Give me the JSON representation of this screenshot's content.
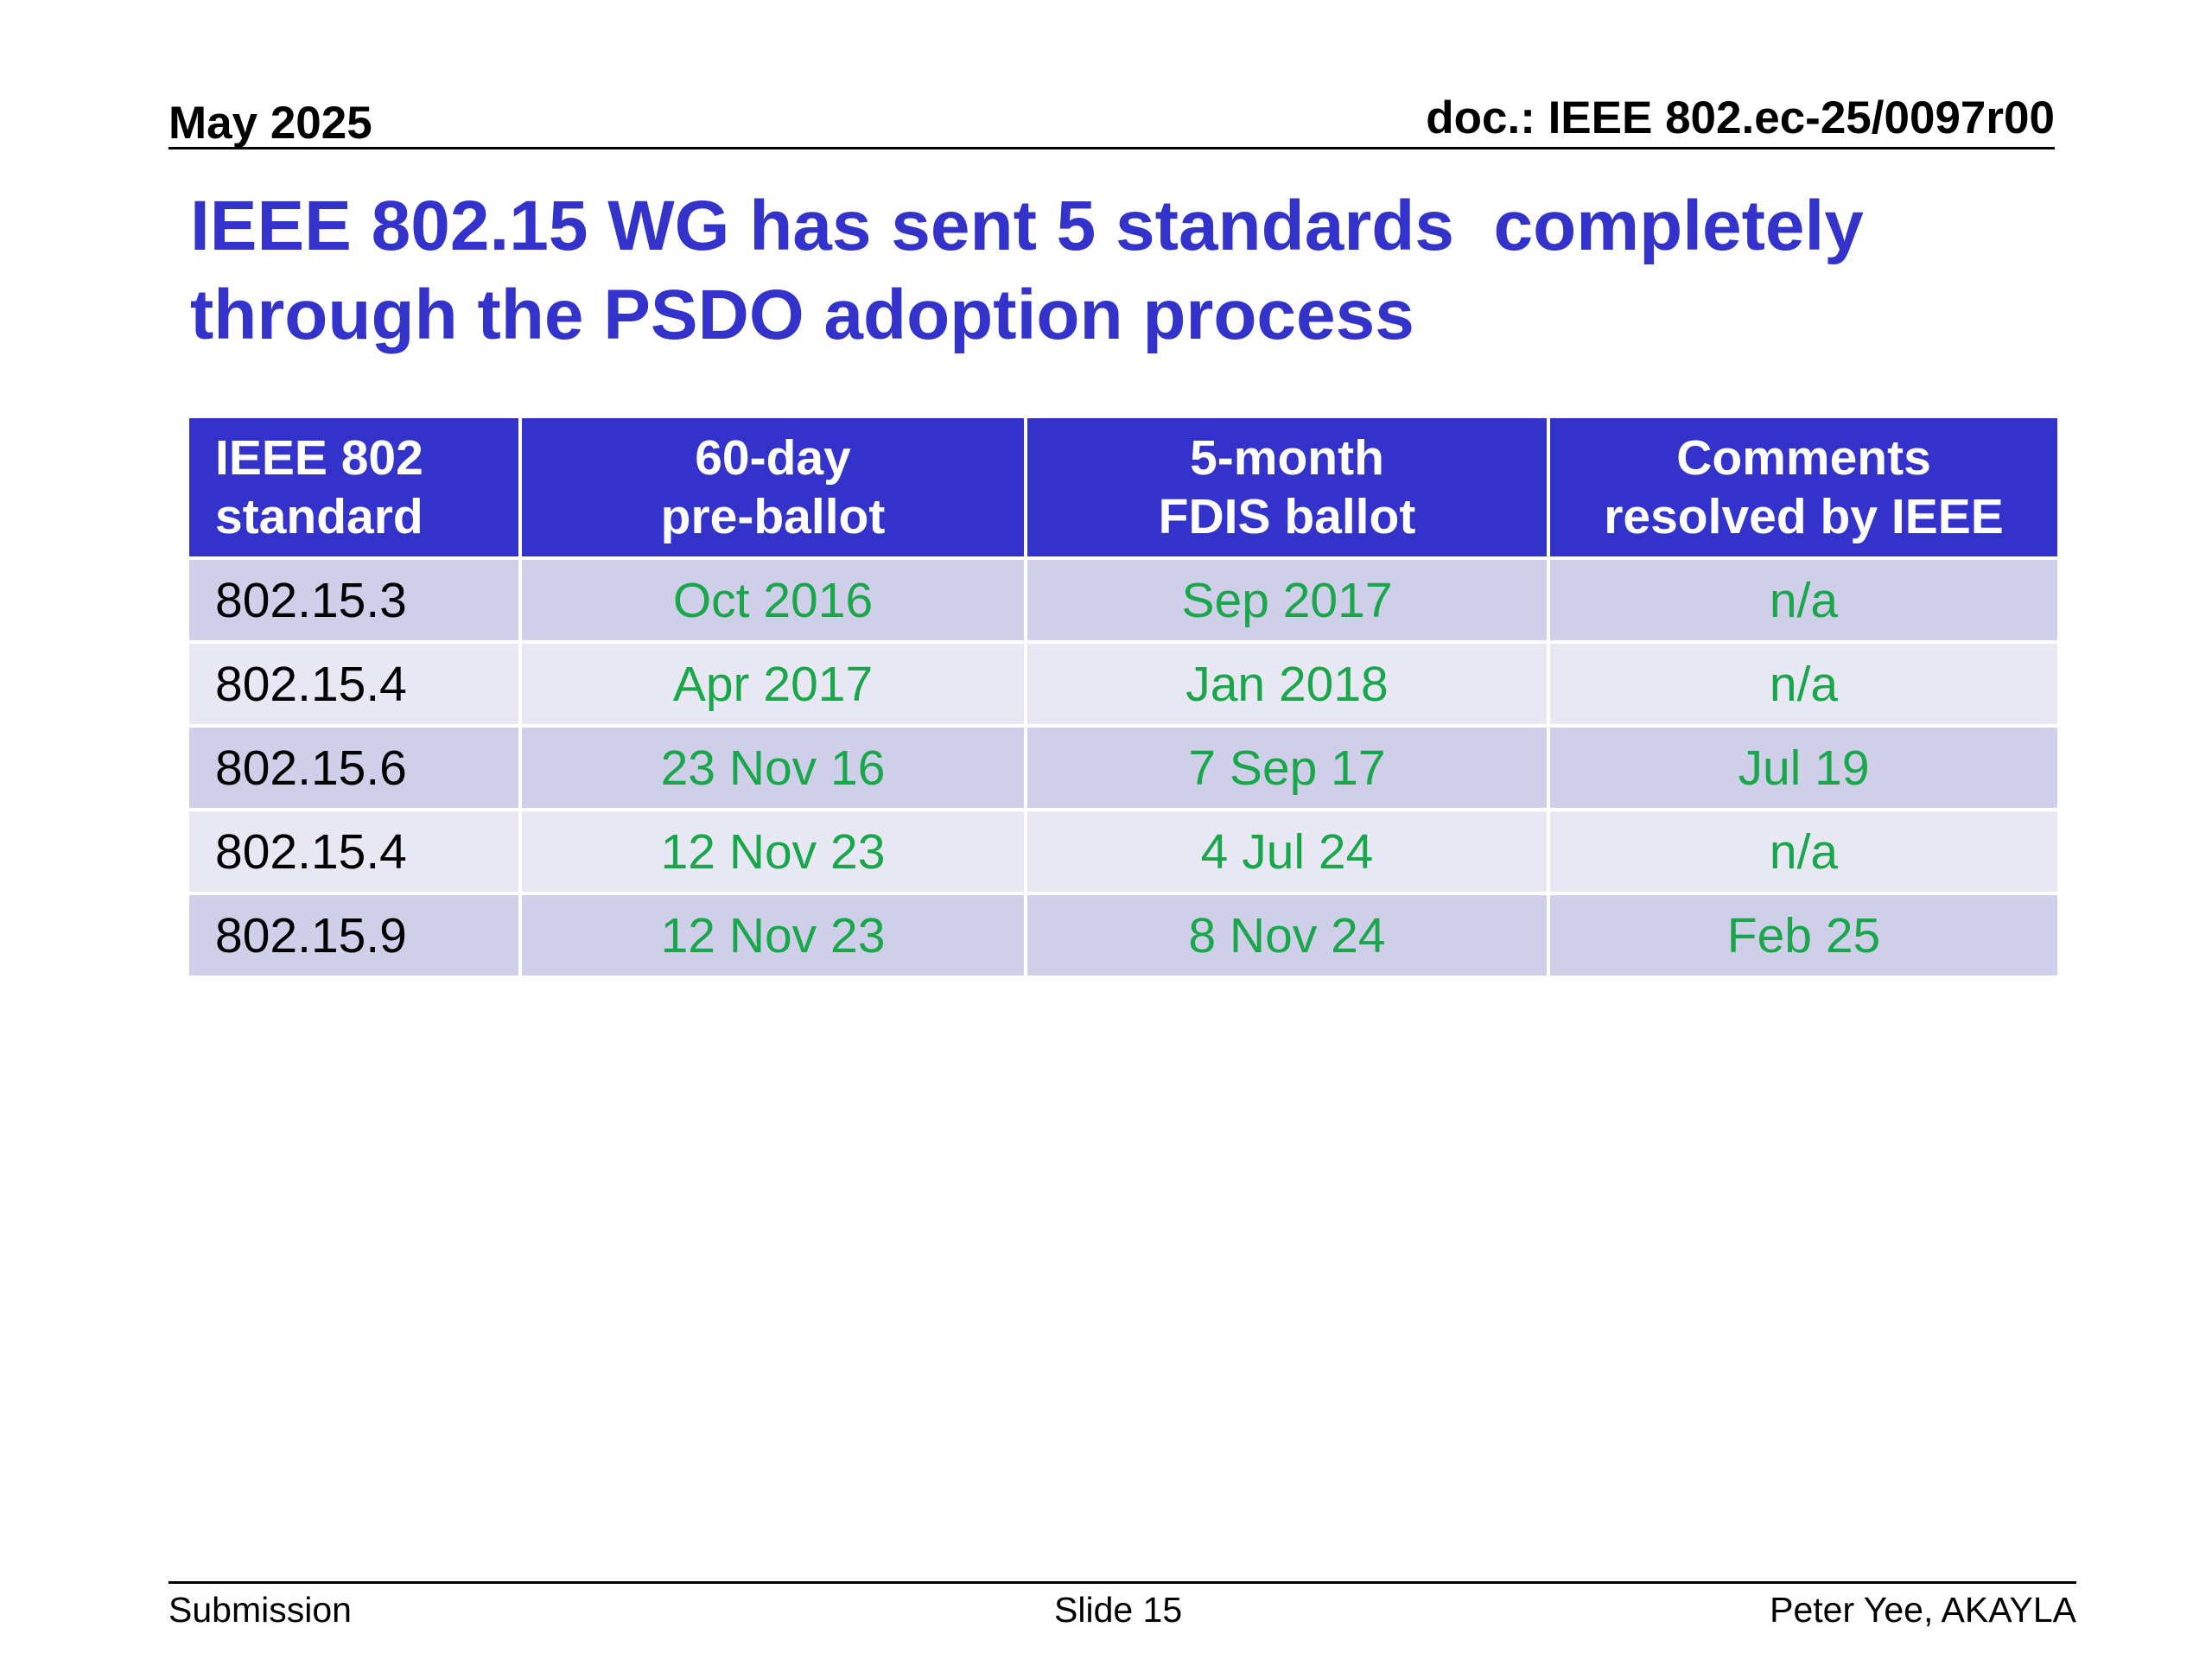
{
  "header": {
    "date": "May 2025",
    "doc": "doc.: IEEE 802.ec-25/0097r00"
  },
  "title": "IEEE 802.15 WG has sent 5 standards  completely\nthrough the PSDO adoption process",
  "table": {
    "headers": [
      "IEEE 802\nstandard",
      "60-day\npre-ballot",
      "5-month\nFDIS ballot",
      "Comments\nresolved by IEEE"
    ],
    "rows": [
      [
        "802.15.3",
        "Oct 2016",
        "Sep 2017",
        "n/a"
      ],
      [
        "802.15.4",
        "Apr 2017",
        "Jan 2018",
        "n/a"
      ],
      [
        "802.15.6",
        "23 Nov 16",
        "7 Sep 17",
        "Jul 19"
      ],
      [
        "802.15.4",
        "12 Nov 23",
        "4 Jul 24",
        "n/a"
      ],
      [
        "802.15.9",
        "12 Nov 23",
        "8 Nov 24",
        "Feb 25"
      ]
    ]
  },
  "footer": {
    "left": "Submission",
    "center": "Slide 15",
    "right": "Peter Yee, AKAYLA"
  },
  "colors": {
    "title": "#3333cc",
    "header_bg": "#3333cc",
    "value_text": "#1aa64a",
    "row_odd": "#cfcfea",
    "row_even": "#e8e8f4"
  }
}
